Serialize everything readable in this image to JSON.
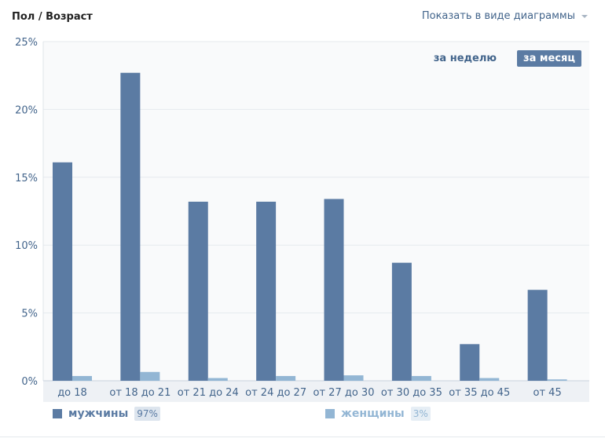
{
  "header": {
    "title": "Пол / Возраст",
    "view_toggle_label": "Показать в виде диаграммы"
  },
  "period": {
    "week_label": "за неделю",
    "month_label": "за месяц",
    "active": "month"
  },
  "legend": {
    "men_label": "мужчины",
    "men_pct": "97%",
    "women_label": "женщины",
    "women_pct": "3%"
  },
  "colors": {
    "men": "#5b7ba3",
    "women": "#93b6d4",
    "men_pct_bg": "#dde5ee",
    "women_pct_bg": "#e6eef5",
    "axis_text": "#42648b",
    "plot_bg": "#f9fafb",
    "grid": "#e6eaee"
  },
  "chart_data": {
    "type": "bar",
    "categories": [
      "до 18",
      "от 18 до 21",
      "от 21 до 24",
      "от 24 до 27",
      "от 27 до 30",
      "от 30 до 35",
      "от 35 до 45",
      "от 45"
    ],
    "series": [
      {
        "name": "мужчины",
        "values": [
          16.1,
          22.7,
          13.2,
          13.2,
          13.4,
          8.7,
          2.7,
          6.7
        ]
      },
      {
        "name": "женщины",
        "values": [
          0.35,
          0.65,
          0.2,
          0.35,
          0.4,
          0.35,
          0.2,
          0.1
        ]
      }
    ],
    "y_tick_labels": [
      "0%",
      "5%",
      "10%",
      "15%",
      "20%",
      "25%"
    ],
    "y_ticks": [
      0,
      5,
      10,
      15,
      20,
      25
    ],
    "ylim": [
      0,
      25
    ],
    "grid": true
  }
}
